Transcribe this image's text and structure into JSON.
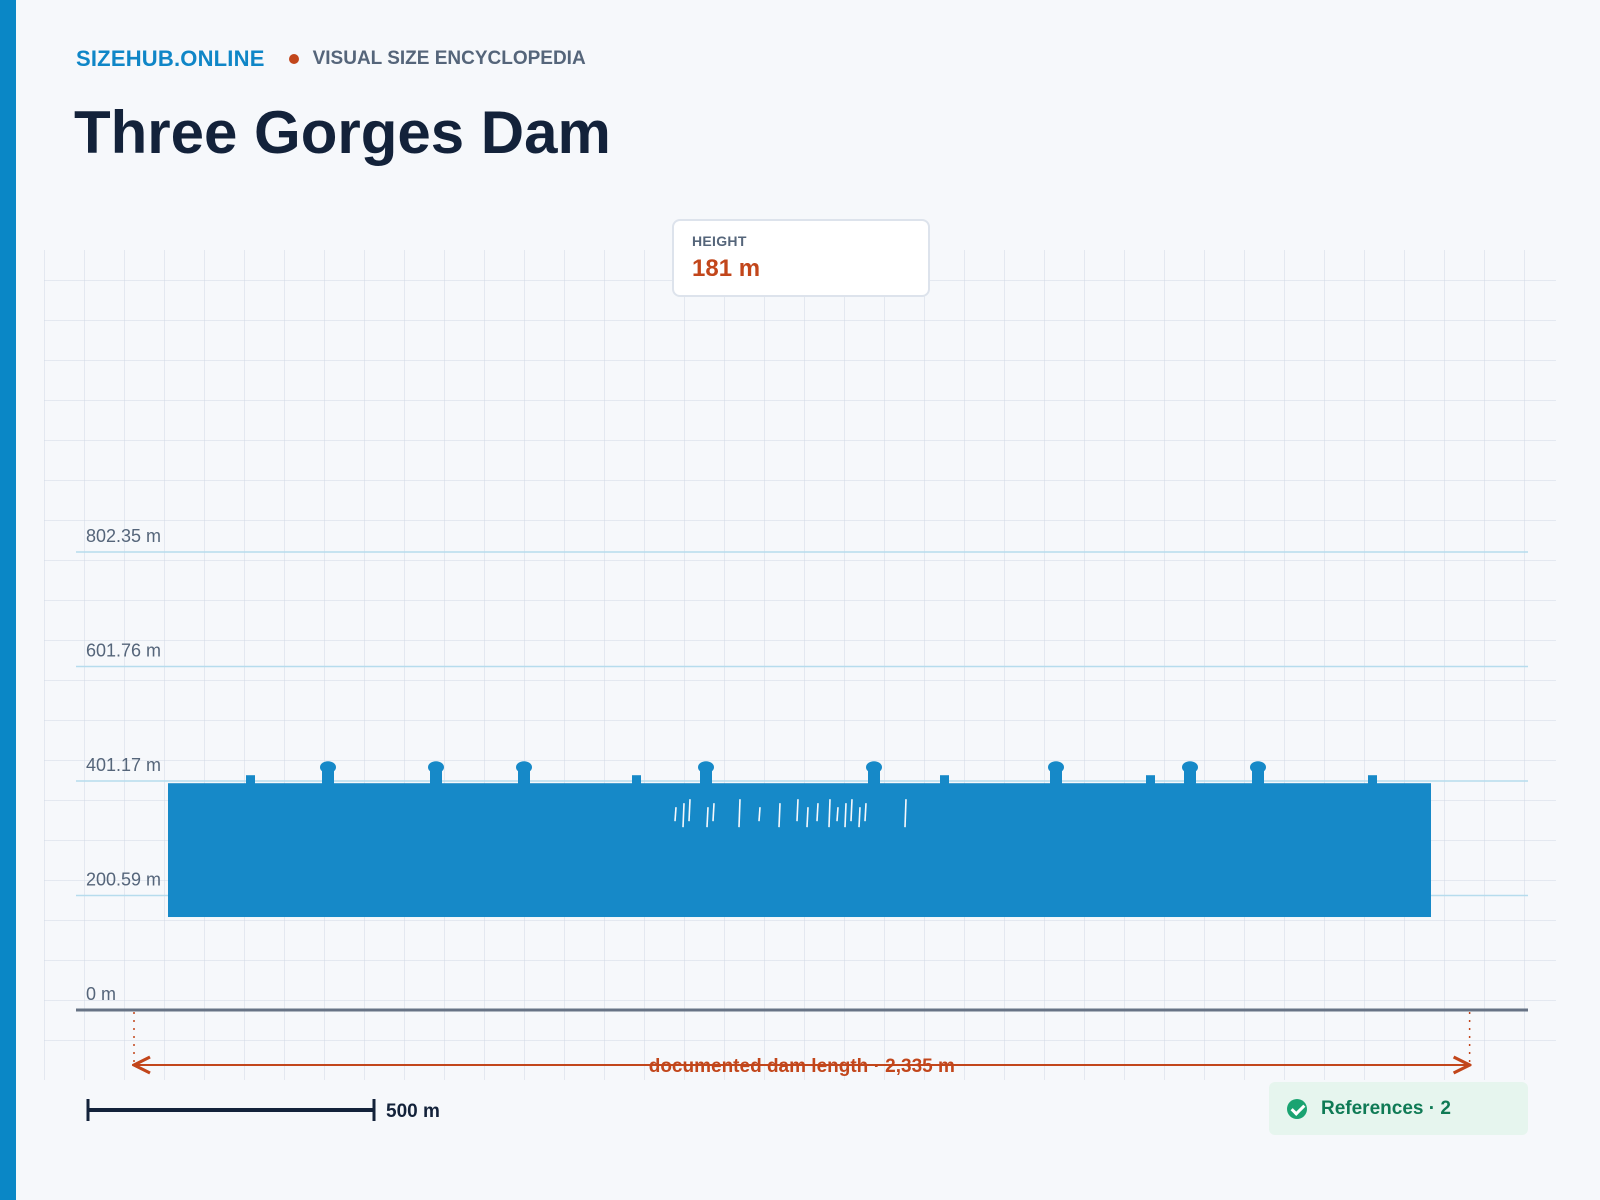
{
  "header": {
    "brand": "SIZEHUB.ONLINE",
    "tagline": "VISUAL SIZE ENCYCLOPEDIA",
    "title": "Three Gorges Dam"
  },
  "height_card": {
    "label": "HEIGHT",
    "value": "181 m"
  },
  "chart_data": {
    "type": "diagram",
    "subject": "Three Gorges Dam",
    "height_m": 181,
    "length_m": 2335,
    "y_ticks": [
      "0 m",
      "200.59 m",
      "401.17 m",
      "601.76 m",
      "802.35 m"
    ],
    "y_tick_values": [
      0,
      200.59,
      401.17,
      601.76,
      802.35
    ],
    "length_annotation": "documented dam length · 2,335 m",
    "scale_bar": {
      "label": "500 m",
      "value_m": 500
    },
    "silhouette_color": "#1689c8",
    "accent_color": "#c2461b"
  },
  "references": {
    "label": "References · 2"
  }
}
